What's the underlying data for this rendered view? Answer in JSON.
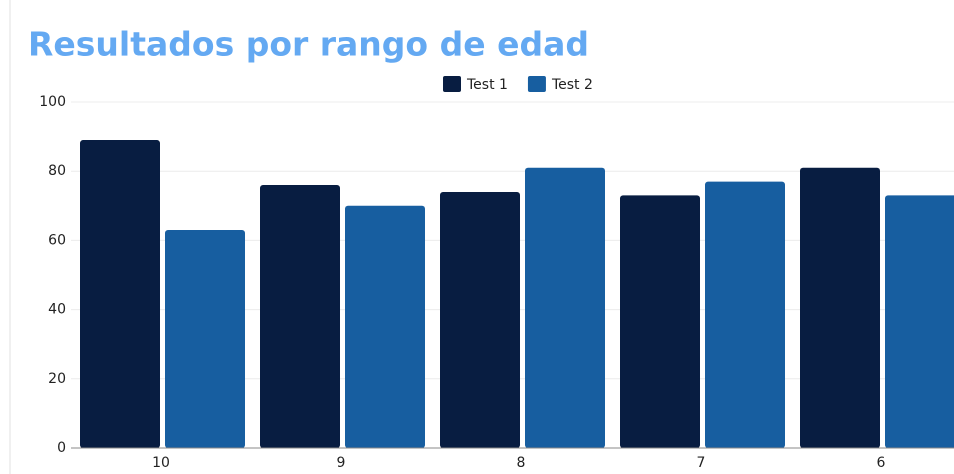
{
  "chart_data": {
    "type": "bar",
    "title": "Resultados por rango de edad",
    "categories": [
      "10",
      "9",
      "8",
      "7",
      "6"
    ],
    "series": [
      {
        "name": "Test 1",
        "color": "#081d41",
        "values": [
          89,
          76,
          74,
          73,
          81
        ]
      },
      {
        "name": "Test 2",
        "color": "#175ea0",
        "values": [
          63,
          70,
          81,
          77,
          73
        ]
      }
    ],
    "ylim": [
      0,
      100
    ],
    "yticks": [
      0,
      20,
      40,
      60,
      80,
      100
    ],
    "grid": true
  }
}
